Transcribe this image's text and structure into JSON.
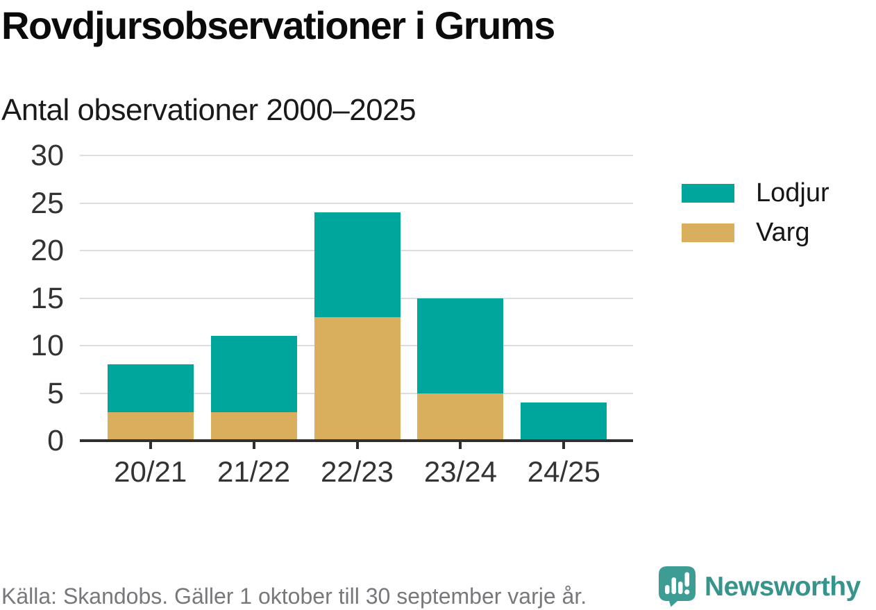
{
  "header": {
    "title": "Rovdjursobservationer i Grums",
    "subtitle": "Antal observationer 2000–2025"
  },
  "chart_data": {
    "type": "bar",
    "stacked": true,
    "title": "Rovdjursobservationer i Grums",
    "subtitle": "Antal observationer 2000–2025",
    "categories": [
      "20/21",
      "21/22",
      "22/23",
      "23/24",
      "24/25"
    ],
    "series": [
      {
        "name": "Lodjur",
        "color": "#00a69c",
        "values": [
          5,
          8,
          11,
          10,
          4
        ]
      },
      {
        "name": "Varg",
        "color": "#d9ae5d",
        "values": [
          3,
          3,
          13,
          5,
          0
        ]
      }
    ],
    "stack_order_bottom_to_top": [
      "Varg",
      "Lodjur"
    ],
    "totals": [
      8,
      11,
      24,
      15,
      4
    ],
    "xlabel": "",
    "ylabel": "",
    "ylim": [
      0,
      30
    ],
    "yticks": [
      0,
      5,
      10,
      15,
      20,
      25,
      30
    ],
    "grid": true,
    "legend_position": "right"
  },
  "legend": {
    "items": [
      {
        "label": "Lodjur",
        "color": "#00a69c"
      },
      {
        "label": "Varg",
        "color": "#d9ae5d"
      }
    ]
  },
  "footer": {
    "source": "Källa: Skandobs. Gäller 1 oktober till 30 september varje år.",
    "brand": "Newsworthy"
  },
  "colors": {
    "lodjur": "#00a69c",
    "varg": "#d9ae5d",
    "gridline": "#dddddd",
    "axis": "#2f2f2f",
    "tick_label": "#333333",
    "title": "#0b0b0b",
    "subtitle": "#1a1a1a",
    "source_text": "#77787b",
    "brand_teal": "#37948c",
    "logo_bubble": "#3d9d95"
  },
  "icons": {
    "brand_logo": "newsworthy-speech-bubble-bar-chart-icon"
  }
}
